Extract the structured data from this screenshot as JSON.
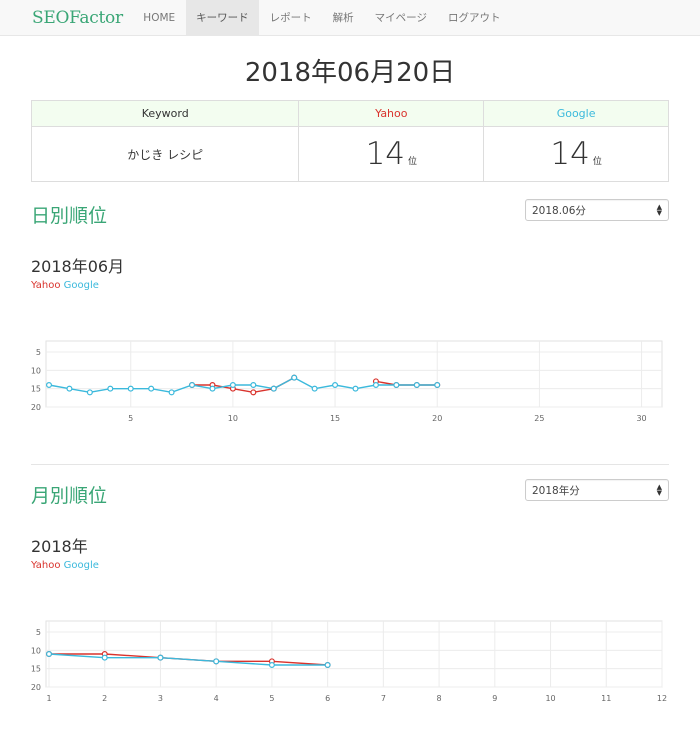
{
  "nav": {
    "brand_seo": "SEO",
    "brand_factor": "Factor",
    "items": [
      {
        "label": "HOME"
      },
      {
        "label": "キーワード",
        "active": true
      },
      {
        "label": "レポート"
      },
      {
        "label": "解析"
      },
      {
        "label": "マイページ"
      },
      {
        "label": "ログアウト"
      }
    ]
  },
  "date_title": "2018年06月20日",
  "rank_table": {
    "headers": {
      "keyword": "Keyword",
      "yahoo": "Yahoo",
      "google": "Google"
    },
    "keyword": "かじき レシピ",
    "yahoo_rank": "14",
    "google_rank": "14",
    "rank_unit": "位"
  },
  "daily": {
    "title": "日別順位",
    "select_value": "2018.06分",
    "sub_title": "2018年06月",
    "legend_yahoo": "Yahoo",
    "legend_google": "Google"
  },
  "monthly": {
    "title": "月別順位",
    "select_value": "2018年分",
    "sub_title": "2018年",
    "legend_yahoo": "Yahoo",
    "legend_google": "Google"
  },
  "colors": {
    "yahoo": "#d9332d",
    "google": "#3bb9dc",
    "accent": "#3aa676"
  },
  "chart_data": [
    {
      "type": "line",
      "x": [
        1,
        2,
        3,
        4,
        5,
        6,
        7,
        8,
        9,
        10,
        11,
        12,
        13,
        14,
        15,
        16,
        17,
        18,
        19,
        20
      ],
      "xlim": [
        1,
        31
      ],
      "xticks": [
        5,
        10,
        15,
        20,
        25,
        30
      ],
      "ylim": [
        20,
        2
      ],
      "yticks": [
        5,
        10,
        15,
        20
      ],
      "y_inverted": true,
      "grid": true,
      "series": [
        {
          "name": "Yahoo",
          "color": "#d9332d",
          "values": [
            null,
            null,
            null,
            null,
            null,
            null,
            null,
            14,
            14,
            15,
            16,
            15,
            12,
            null,
            null,
            null,
            13,
            14,
            14,
            14
          ]
        },
        {
          "name": "Google",
          "color": "#3bb9dc",
          "values": [
            14,
            15,
            16,
            15,
            15,
            15,
            16,
            14,
            15,
            14,
            14,
            15,
            12,
            15,
            14,
            15,
            14,
            14,
            14,
            14
          ]
        }
      ]
    },
    {
      "type": "line",
      "x": [
        1,
        2,
        3,
        4,
        5,
        6
      ],
      "xlim": [
        1,
        12
      ],
      "xticks": [
        1,
        2,
        3,
        4,
        5,
        6,
        7,
        8,
        9,
        10,
        11,
        12
      ],
      "ylim": [
        20,
        2
      ],
      "yticks": [
        5,
        10,
        15,
        20
      ],
      "y_inverted": true,
      "grid": true,
      "series": [
        {
          "name": "Yahoo",
          "color": "#d9332d",
          "values": [
            11,
            11,
            12,
            13,
            13,
            14
          ]
        },
        {
          "name": "Google",
          "color": "#3bb9dc",
          "values": [
            11,
            12,
            12,
            13,
            14,
            14
          ]
        }
      ]
    }
  ]
}
